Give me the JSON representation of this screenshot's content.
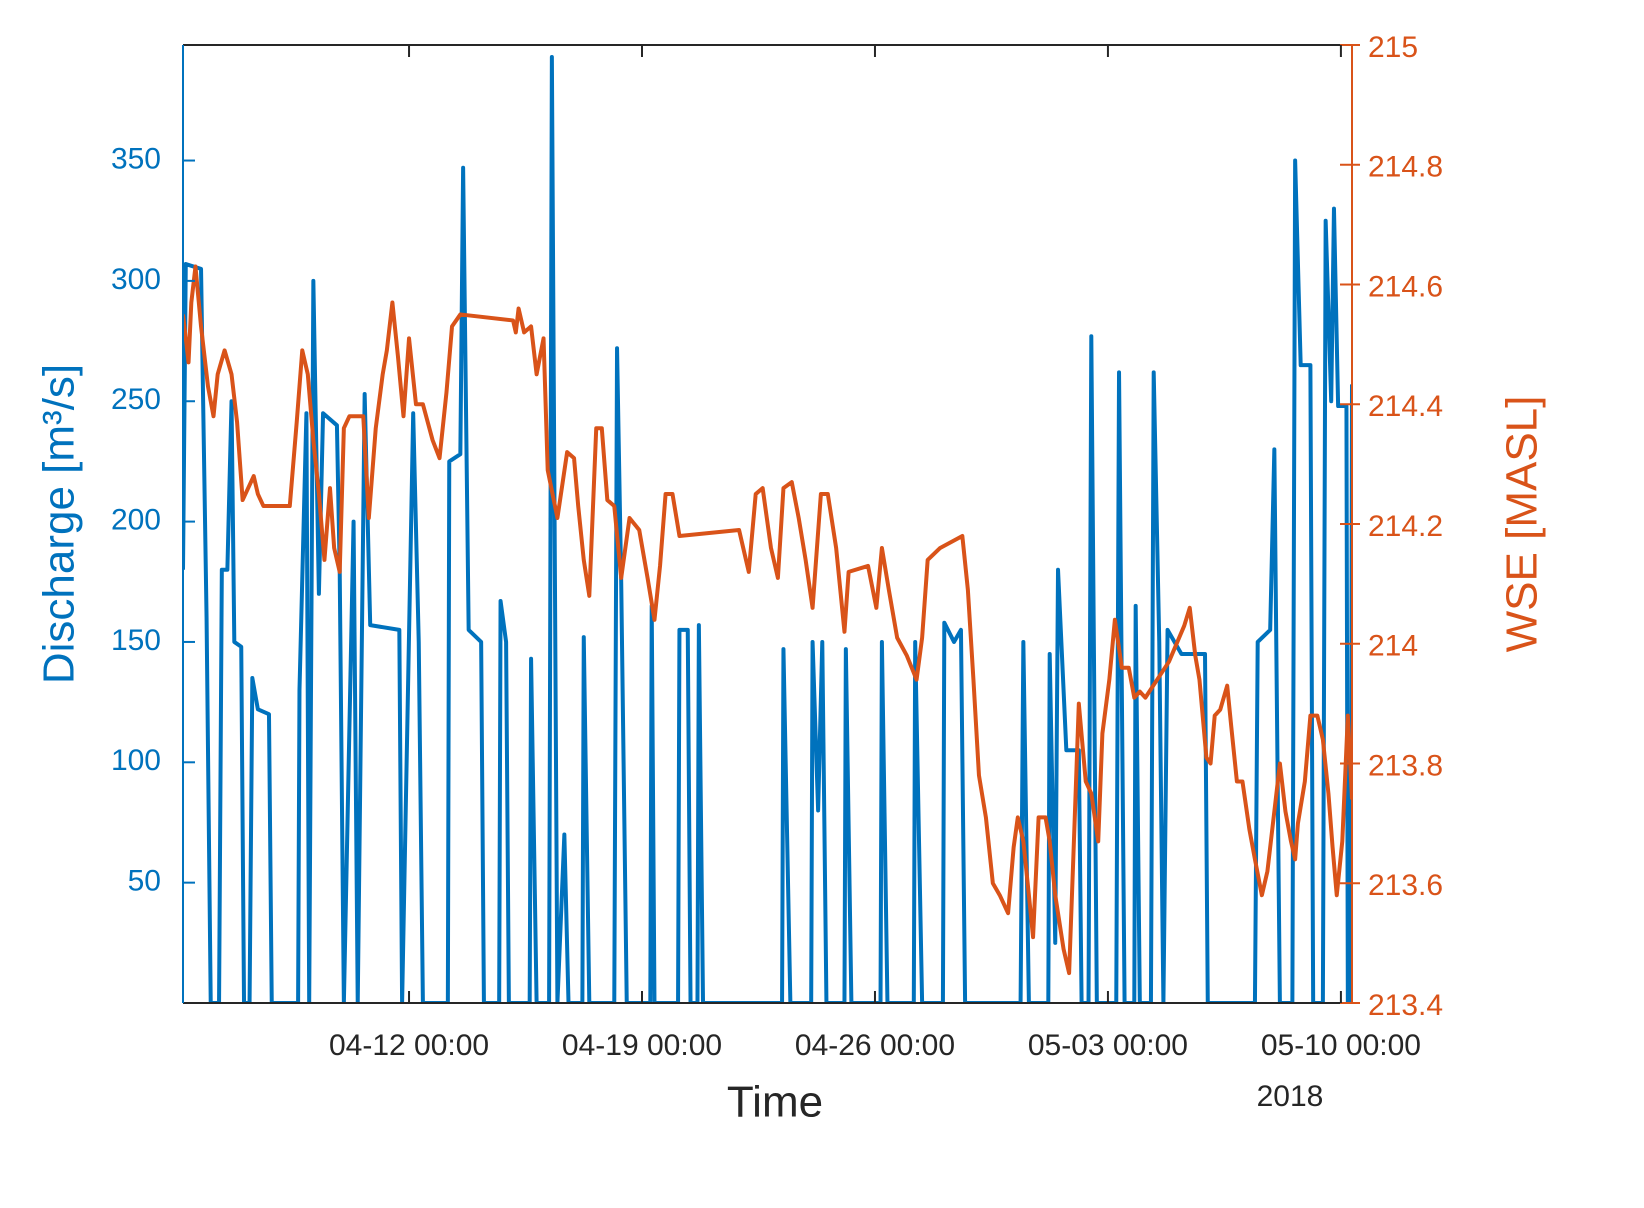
{
  "chart_data": {
    "type": "line",
    "xlabel": "Time",
    "x_year": "2018",
    "ylabel": "Discharge [m³/s]",
    "y2label": "WSE [MASL]",
    "xlim": [
      "04-05 05:00",
      "05-10 08:00"
    ],
    "xticks": [
      "04-12 00:00",
      "04-19 00:00",
      "04-26 00:00",
      "05-03 00:00",
      "05-10 00:00"
    ],
    "ylim": [
      0,
      398
    ],
    "yticks": [
      50,
      100,
      150,
      200,
      250,
      300,
      350
    ],
    "y2lim": [
      213.4,
      215
    ],
    "y2ticks": [
      213.4,
      213.6,
      213.8,
      214,
      214.2,
      214.4,
      214.6,
      214.8,
      215
    ],
    "series": [
      {
        "color": "#0072bd",
        "x": [
          "04-05 05:00",
          "04-05 07:00",
          "04-05 18:00",
          "04-05 22:00",
          "04-06 01:00",
          "04-06 07:00",
          "04-06 09:00",
          "04-06 13:00",
          "04-06 16:00",
          "04-06 18:00",
          "04-06 23:00",
          "04-07 01:00",
          "04-07 05:00",
          "04-07 07:00",
          "04-07 11:00",
          "04-07 19:00",
          "04-07 21:00",
          "04-08 16:00",
          "04-08 17:00",
          "04-08 22:00",
          "04-09 00:00",
          "04-09 03:00",
          "04-09 07:00",
          "04-09 10:00",
          "04-09 20:00",
          "04-09 22:00",
          "04-10 01:00",
          "04-10 08:00",
          "04-10 11:00",
          "04-10 16:00",
          "04-10 20:00",
          "04-11 17:00",
          "04-11 19:00",
          "04-12 03:00",
          "04-12 07:00",
          "04-12 10:00",
          "04-13 04:00",
          "04-13 05:00",
          "04-13 13:00",
          "04-13 15:00",
          "04-13 19:00",
          "04-14 04:00",
          "04-14 06:00",
          "04-14 17:00",
          "04-14 18:00",
          "04-14 22:00",
          "04-15 00:00",
          "04-15 15:00",
          "04-15 16:00",
          "04-15 20:00",
          "04-16 05:00",
          "04-16 07:00",
          "04-16 11:00",
          "04-16 16:00",
          "04-16 19:00",
          "04-17 05:00",
          "04-17 06:00",
          "04-17 10:00",
          "04-18 04:00",
          "04-18 06:00",
          "04-18 09:00",
          "04-18 13:00",
          "04-19 06:00",
          "04-19 07:00",
          "04-19 09:00",
          "04-20 02:00",
          "04-20 03:00",
          "04-20 09:00",
          "04-20 11:00",
          "04-20 16:00",
          "04-20 17:00",
          "04-20 20:00",
          "04-23 05:00",
          "04-23 06:00",
          "04-23 11:00",
          "04-24 02:00",
          "04-24 03:00",
          "04-24 07:00",
          "04-24 10:00",
          "04-24 13:00",
          "04-25 02:00",
          "04-25 03:00",
          "04-25 07:00",
          "04-26 04:00",
          "04-26 05:00",
          "04-26 09:00",
          "04-27 04:00",
          "04-27 05:00",
          "04-27 10:00",
          "04-28 01:00",
          "04-28 02:00",
          "04-28 09:00",
          "04-28 14:00",
          "04-28 17:00",
          "04-30 09:00",
          "04-30 11:00",
          "04-30 15:00",
          "05-01 05:00",
          "05-01 06:00",
          "05-01 10:00",
          "05-01 12:00",
          "05-01 18:00",
          "05-02 03:00",
          "05-02 05:00",
          "05-02 10:00",
          "05-02 12:00",
          "05-02 16:00",
          "05-03 06:00",
          "05-03 08:00",
          "05-03 12:00",
          "05-03 19:00",
          "05-03 20:00",
          "05-03 23:00",
          "05-04 07:00",
          "05-04 09:00",
          "05-04 13:00",
          "05-04 16:00",
          "05-04 19:00",
          "05-05 05:00",
          "05-05 22:00",
          "05-06 00:00",
          "05-07 10:00",
          "05-07 12:00",
          "05-07 21:00",
          "05-08 00:00",
          "05-08 04:00",
          "05-08 13:00",
          "05-08 15:00",
          "05-08 19:00",
          "05-09 02:00",
          "05-09 04:00",
          "05-09 11:00",
          "05-09 13:00",
          "05-09 17:00",
          "05-09 19:00",
          "05-09 22:00",
          "05-10 04:00",
          "05-10 05:00",
          "05-10 07:00",
          "05-10 08:00"
        ],
        "values": [
          180,
          307,
          305,
          160,
          0,
          0,
          180,
          180,
          250,
          150,
          148,
          0,
          0,
          135,
          122,
          120,
          0,
          0,
          130,
          245,
          0,
          300,
          170,
          245,
          240,
          180,
          0,
          200,
          0,
          253,
          157,
          155,
          0,
          245,
          150,
          0,
          0,
          225,
          228,
          347,
          155,
          150,
          0,
          0,
          167,
          150,
          0,
          0,
          143,
          0,
          0,
          393,
          0,
          70,
          0,
          0,
          152,
          0,
          0,
          272,
          175,
          0,
          0,
          165,
          0,
          0,
          155,
          155,
          0,
          0,
          157,
          0,
          0,
          147,
          0,
          0,
          150,
          80,
          150,
          0,
          0,
          147,
          0,
          0,
          150,
          0,
          0,
          150,
          0,
          0,
          158,
          150,
          155,
          0,
          0,
          150,
          0,
          0,
          145,
          25,
          180,
          105,
          105,
          0,
          0,
          277,
          0,
          0,
          262,
          0,
          0,
          165,
          0,
          0,
          262,
          150,
          0,
          155,
          145,
          145,
          0,
          0,
          150,
          155,
          230,
          0,
          0,
          350,
          265,
          265,
          0,
          0,
          325,
          250,
          330,
          248,
          248,
          0,
          0,
          257
        ]
      },
      {
        "color": "#d95319",
        "axis": "y2",
        "x": [
          "04-05 05:00",
          "04-05 09:00",
          "04-05 11:00",
          "04-05 14:00",
          "04-05 18:00",
          "04-05 23:00",
          "04-06 03:00",
          "04-06 06:00",
          "04-06 11:00",
          "04-06 16:00",
          "04-06 20:00",
          "04-07 00:00",
          "04-07 04:00",
          "04-07 08:00",
          "04-07 11:00",
          "04-07 15:00",
          "04-08 10:00",
          "04-08 15:00",
          "04-08 19:00",
          "04-08 23:00",
          "04-09 03:00",
          "04-09 07:00",
          "04-09 11:00",
          "04-09 15:00",
          "04-09 18:00",
          "04-09 22:00",
          "04-10 01:00",
          "04-10 05:00",
          "04-10 15:00",
          "04-10 19:00",
          "04-11 00:00",
          "04-11 05:00",
          "04-11 08:00",
          "04-11 12:00",
          "04-11 16:00",
          "04-11 20:00",
          "04-12 00:00",
          "04-12 05:00",
          "04-12 10:00",
          "04-12 17:00",
          "04-12 22:00",
          "04-13 03:00",
          "04-13 07:00",
          "04-13 13:00",
          "04-15 03:00",
          "04-15 05:00",
          "04-15 07:00",
          "04-15 11:00",
          "04-15 16:00",
          "04-15 20:00",
          "04-16 01:00",
          "04-16 04:00",
          "04-16 11:00",
          "04-16 18:00",
          "04-16 23:00",
          "04-17 02:00",
          "04-17 06:00",
          "04-17 10:00",
          "04-17 15:00",
          "04-17 19:00",
          "04-17 23:00",
          "04-18 04:00",
          "04-18 09:00",
          "04-18 15:00",
          "04-18 22:00",
          "04-19 04:00",
          "04-19 09:00",
          "04-19 13:00",
          "04-19 17:00",
          "04-19 22:00",
          "04-20 03:00",
          "04-21 22:00",
          "04-22 05:00",
          "04-22 10:00",
          "04-22 15:00",
          "04-22 21:00",
          "04-23 02:00",
          "04-23 06:00",
          "04-23 12:00",
          "04-23 17:00",
          "04-23 22:00",
          "04-24 03:00",
          "04-24 09:00",
          "04-24 14:00",
          "04-24 20:00",
          "04-25 02:00",
          "04-25 05:00",
          "04-25 19:00",
          "04-26 01:00",
          "04-26 05:00",
          "04-26 10:00",
          "04-26 16:00",
          "04-26 23:00",
          "04-27 06:00",
          "04-27 10:00",
          "04-27 14:00",
          "04-27 23:00",
          "04-28 15:00",
          "04-28 19:00",
          "04-28 23:00",
          "04-29 03:00",
          "04-29 08:00",
          "04-29 13:00",
          "04-29 18:00",
          "04-30 00:00",
          "04-30 04:00",
          "04-30 07:00",
          "04-30 11:00",
          "04-30 15:00",
          "04-30 18:00",
          "04-30 22:00",
          "05-01 03:00",
          "05-01 06:00",
          "05-01 10:00",
          "05-01 16:00",
          "05-01 20:00",
          "05-01 23:00",
          "05-02 03:00",
          "05-02 08:00",
          "05-02 12:00",
          "05-02 17:00",
          "05-02 20:00",
          "05-03 01:00",
          "05-03 05:00",
          "05-03 10:00",
          "05-03 15:00",
          "05-03 19:00",
          "05-03 23:00",
          "05-04 03:00",
          "05-04 20:00",
          "05-05 07:00",
          "05-05 11:00",
          "05-05 15:00",
          "05-05 18:00",
          "05-05 23:00",
          "05-06 02:00",
          "05-06 05:00",
          "05-06 09:00",
          "05-06 14:00",
          "05-06 17:00",
          "05-06 21:00",
          "05-07 01:00",
          "05-07 06:00",
          "05-07 10:00",
          "05-07 15:00",
          "05-07 19:00",
          "05-08 01:00",
          "05-08 04:00",
          "05-08 08:00",
          "05-08 12:00",
          "05-08 15:00",
          "05-08 17:00",
          "05-08 22:00",
          "05-09 02:00",
          "05-09 07:00",
          "05-09 11:00",
          "05-09 15:00",
          "05-09 18:00",
          "05-09 21:00",
          "05-10 01:00",
          "05-10 05:00",
          "05-10 08:00"
        ],
        "values": [
          214.55,
          214.47,
          214.57,
          214.63,
          214.53,
          214.43,
          214.38,
          214.45,
          214.49,
          214.45,
          214.37,
          214.24,
          214.26,
          214.28,
          214.25,
          214.23,
          214.23,
          214.37,
          214.49,
          214.45,
          214.34,
          214.25,
          214.14,
          214.26,
          214.16,
          214.12,
          214.36,
          214.38,
          214.38,
          214.21,
          214.36,
          214.45,
          214.49,
          214.57,
          214.48,
          214.38,
          214.51,
          214.4,
          214.4,
          214.34,
          214.31,
          214.42,
          214.53,
          214.55,
          214.54,
          214.52,
          214.56,
          214.52,
          214.53,
          214.45,
          214.51,
          214.29,
          214.21,
          214.32,
          214.31,
          214.23,
          214.14,
          214.08,
          214.36,
          214.36,
          214.24,
          214.23,
          214.11,
          214.21,
          214.19,
          214.11,
          214.04,
          214.13,
          214.25,
          214.25,
          214.18,
          214.19,
          214.12,
          214.25,
          214.26,
          214.16,
          214.11,
          214.26,
          214.27,
          214.21,
          214.14,
          214.06,
          214.25,
          214.25,
          214.16,
          214.02,
          214.12,
          214.13,
          214.06,
          214.16,
          214.09,
          214.01,
          213.98,
          213.94,
          214.01,
          214.14,
          214.16,
          214.18,
          214.09,
          213.94,
          213.78,
          213.71,
          213.6,
          213.58,
          213.55,
          213.66,
          213.71,
          213.67,
          213.58,
          213.51,
          213.71,
          213.71,
          213.67,
          213.58,
          213.49,
          213.45,
          213.64,
          213.9,
          213.77,
          213.75,
          213.67,
          213.85,
          213.94,
          214.04,
          213.96,
          213.96,
          213.91,
          213.92,
          213.91,
          213.97,
          214.03,
          214.06,
          213.98,
          213.94,
          213.81,
          213.8,
          213.88,
          213.89,
          213.93,
          213.86,
          213.77,
          213.77,
          213.69,
          213.64,
          213.58,
          213.62,
          213.74,
          213.8,
          213.72,
          213.67,
          213.64,
          213.7,
          213.77,
          213.88,
          213.88,
          213.84,
          213.75,
          213.66,
          213.58,
          213.67,
          213.88,
          213.74
        ]
      }
    ]
  }
}
